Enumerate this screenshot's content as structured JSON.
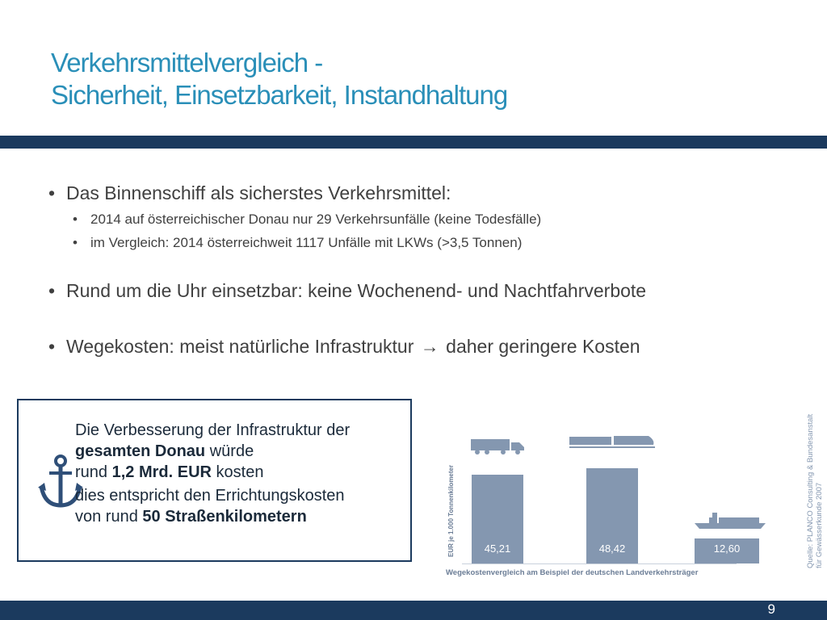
{
  "title": {
    "line1": "Verkehrsmittelvergleich -",
    "line2": "Sicherheit, Einsetzbarkeit, Instandhaltung"
  },
  "bullets": {
    "b1": "Das Binnenschiff als sicherstes Verkehrsmittel:",
    "b1_sub1": "2014 auf österreichischer Donau nur 29 Verkehrsunfälle (keine Todesfälle)",
    "b1_sub2": "im Vergleich:  2014 österreichweit 1117 Unfälle mit LKWs (>3,5 Tonnen)",
    "b2": "Rund um die Uhr einsetzbar: keine Wochenend- und Nachtfahrverbote",
    "b3_part1": "Wegekosten: meist natürliche Infrastruktur",
    "b3_part2": "daher geringere Kosten",
    "bullet_glyph": "•",
    "arrow_glyph": "→"
  },
  "callout": {
    "line1": "Die Verbesserung der Infrastruktur der",
    "bold1": "gesamten Donau",
    "line2b": " würde",
    "line3a": "rund ",
    "bold2": "1,2 Mrd. EUR",
    "line3b": " kosten",
    "line4": "dies entspricht den Errichtungskosten",
    "line5a": "von rund  ",
    "bold3": "50 Straßenkilometern",
    "icon": "anchor-icon"
  },
  "chart_data": {
    "type": "bar",
    "categories": [
      "LKW",
      "Bahn",
      "Binnenschiff"
    ],
    "values": [
      45.21,
      48.42,
      12.6
    ],
    "value_labels": [
      "45,21",
      "48,42",
      "12,60"
    ],
    "ylabel": "EUR je 1.000 Tonnenkilometer",
    "caption": "Wegekostenvergleich am Beispiel der deutschen Landverkehrsträger",
    "bar_color": "#8497b0",
    "ylim": [
      0,
      50
    ]
  },
  "source": {
    "line1": "Quelle: PLANCO Consulting & Bundesanstalt",
    "line2": "für Gewässerkunde 2007"
  },
  "footer": {
    "page_number": "9"
  },
  "colors": {
    "title": "#2a8fb8",
    "band": "#1b3a5e",
    "text": "#404040"
  }
}
